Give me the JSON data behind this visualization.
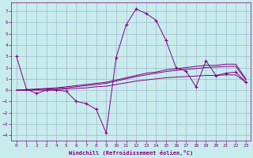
{
  "xlabel": "Windchill (Refroidissement éolien,°C)",
  "background_color": "#c8ecec",
  "line_color": "#800080",
  "grid_color": "#99aacc",
  "xlim": [
    -0.5,
    23.5
  ],
  "ylim": [
    -4.5,
    7.8
  ],
  "yticks": [
    -4,
    -3,
    -2,
    -1,
    0,
    1,
    2,
    3,
    4,
    5,
    6,
    7
  ],
  "xticks": [
    0,
    1,
    2,
    3,
    4,
    5,
    6,
    7,
    8,
    9,
    10,
    11,
    12,
    13,
    14,
    15,
    16,
    17,
    18,
    19,
    20,
    21,
    22,
    23
  ],
  "series": [
    {
      "x": [
        0,
        1,
        2,
        3,
        4,
        5,
        6,
        7,
        8,
        9,
        10,
        11,
        12,
        13,
        14,
        15,
        16,
        17,
        18,
        19,
        20,
        21,
        22,
        23
      ],
      "y": [
        3.0,
        0.1,
        -0.3,
        0.0,
        0.0,
        -0.1,
        -1.0,
        -1.2,
        -1.7,
        -3.8,
        2.9,
        5.8,
        7.2,
        6.8,
        6.2,
        4.4,
        2.0,
        1.7,
        0.3,
        2.6,
        1.3,
        1.5,
        1.6,
        0.7
      ],
      "has_markers": true
    },
    {
      "x": [
        0,
        1,
        2,
        3,
        4,
        5,
        6,
        7,
        8,
        9,
        10,
        11,
        12,
        13,
        14,
        15,
        16,
        17,
        18,
        19,
        20,
        21,
        22,
        23
      ],
      "y": [
        0.0,
        0.05,
        0.1,
        0.15,
        0.2,
        0.3,
        0.4,
        0.5,
        0.6,
        0.7,
        0.9,
        1.1,
        1.3,
        1.5,
        1.6,
        1.8,
        1.9,
        2.0,
        2.1,
        2.2,
        2.2,
        2.3,
        2.3,
        1.0
      ],
      "has_markers": false
    },
    {
      "x": [
        0,
        1,
        2,
        3,
        4,
        5,
        6,
        7,
        8,
        9,
        10,
        11,
        12,
        13,
        14,
        15,
        16,
        17,
        18,
        19,
        20,
        21,
        22,
        23
      ],
      "y": [
        0.0,
        0.0,
        0.05,
        0.1,
        0.15,
        0.2,
        0.3,
        0.4,
        0.5,
        0.6,
        0.8,
        1.0,
        1.2,
        1.35,
        1.5,
        1.65,
        1.75,
        1.85,
        1.9,
        2.0,
        2.05,
        2.1,
        2.1,
        0.9
      ],
      "has_markers": false
    },
    {
      "x": [
        0,
        1,
        2,
        3,
        4,
        5,
        6,
        7,
        8,
        9,
        10,
        11,
        12,
        13,
        14,
        15,
        16,
        17,
        18,
        19,
        20,
        21,
        22,
        23
      ],
      "y": [
        0.0,
        0.0,
        0.0,
        0.0,
        0.05,
        0.1,
        0.15,
        0.2,
        0.3,
        0.35,
        0.5,
        0.65,
        0.8,
        0.9,
        1.0,
        1.1,
        1.15,
        1.2,
        1.25,
        1.3,
        1.3,
        1.35,
        1.35,
        0.7
      ],
      "has_markers": false
    }
  ]
}
